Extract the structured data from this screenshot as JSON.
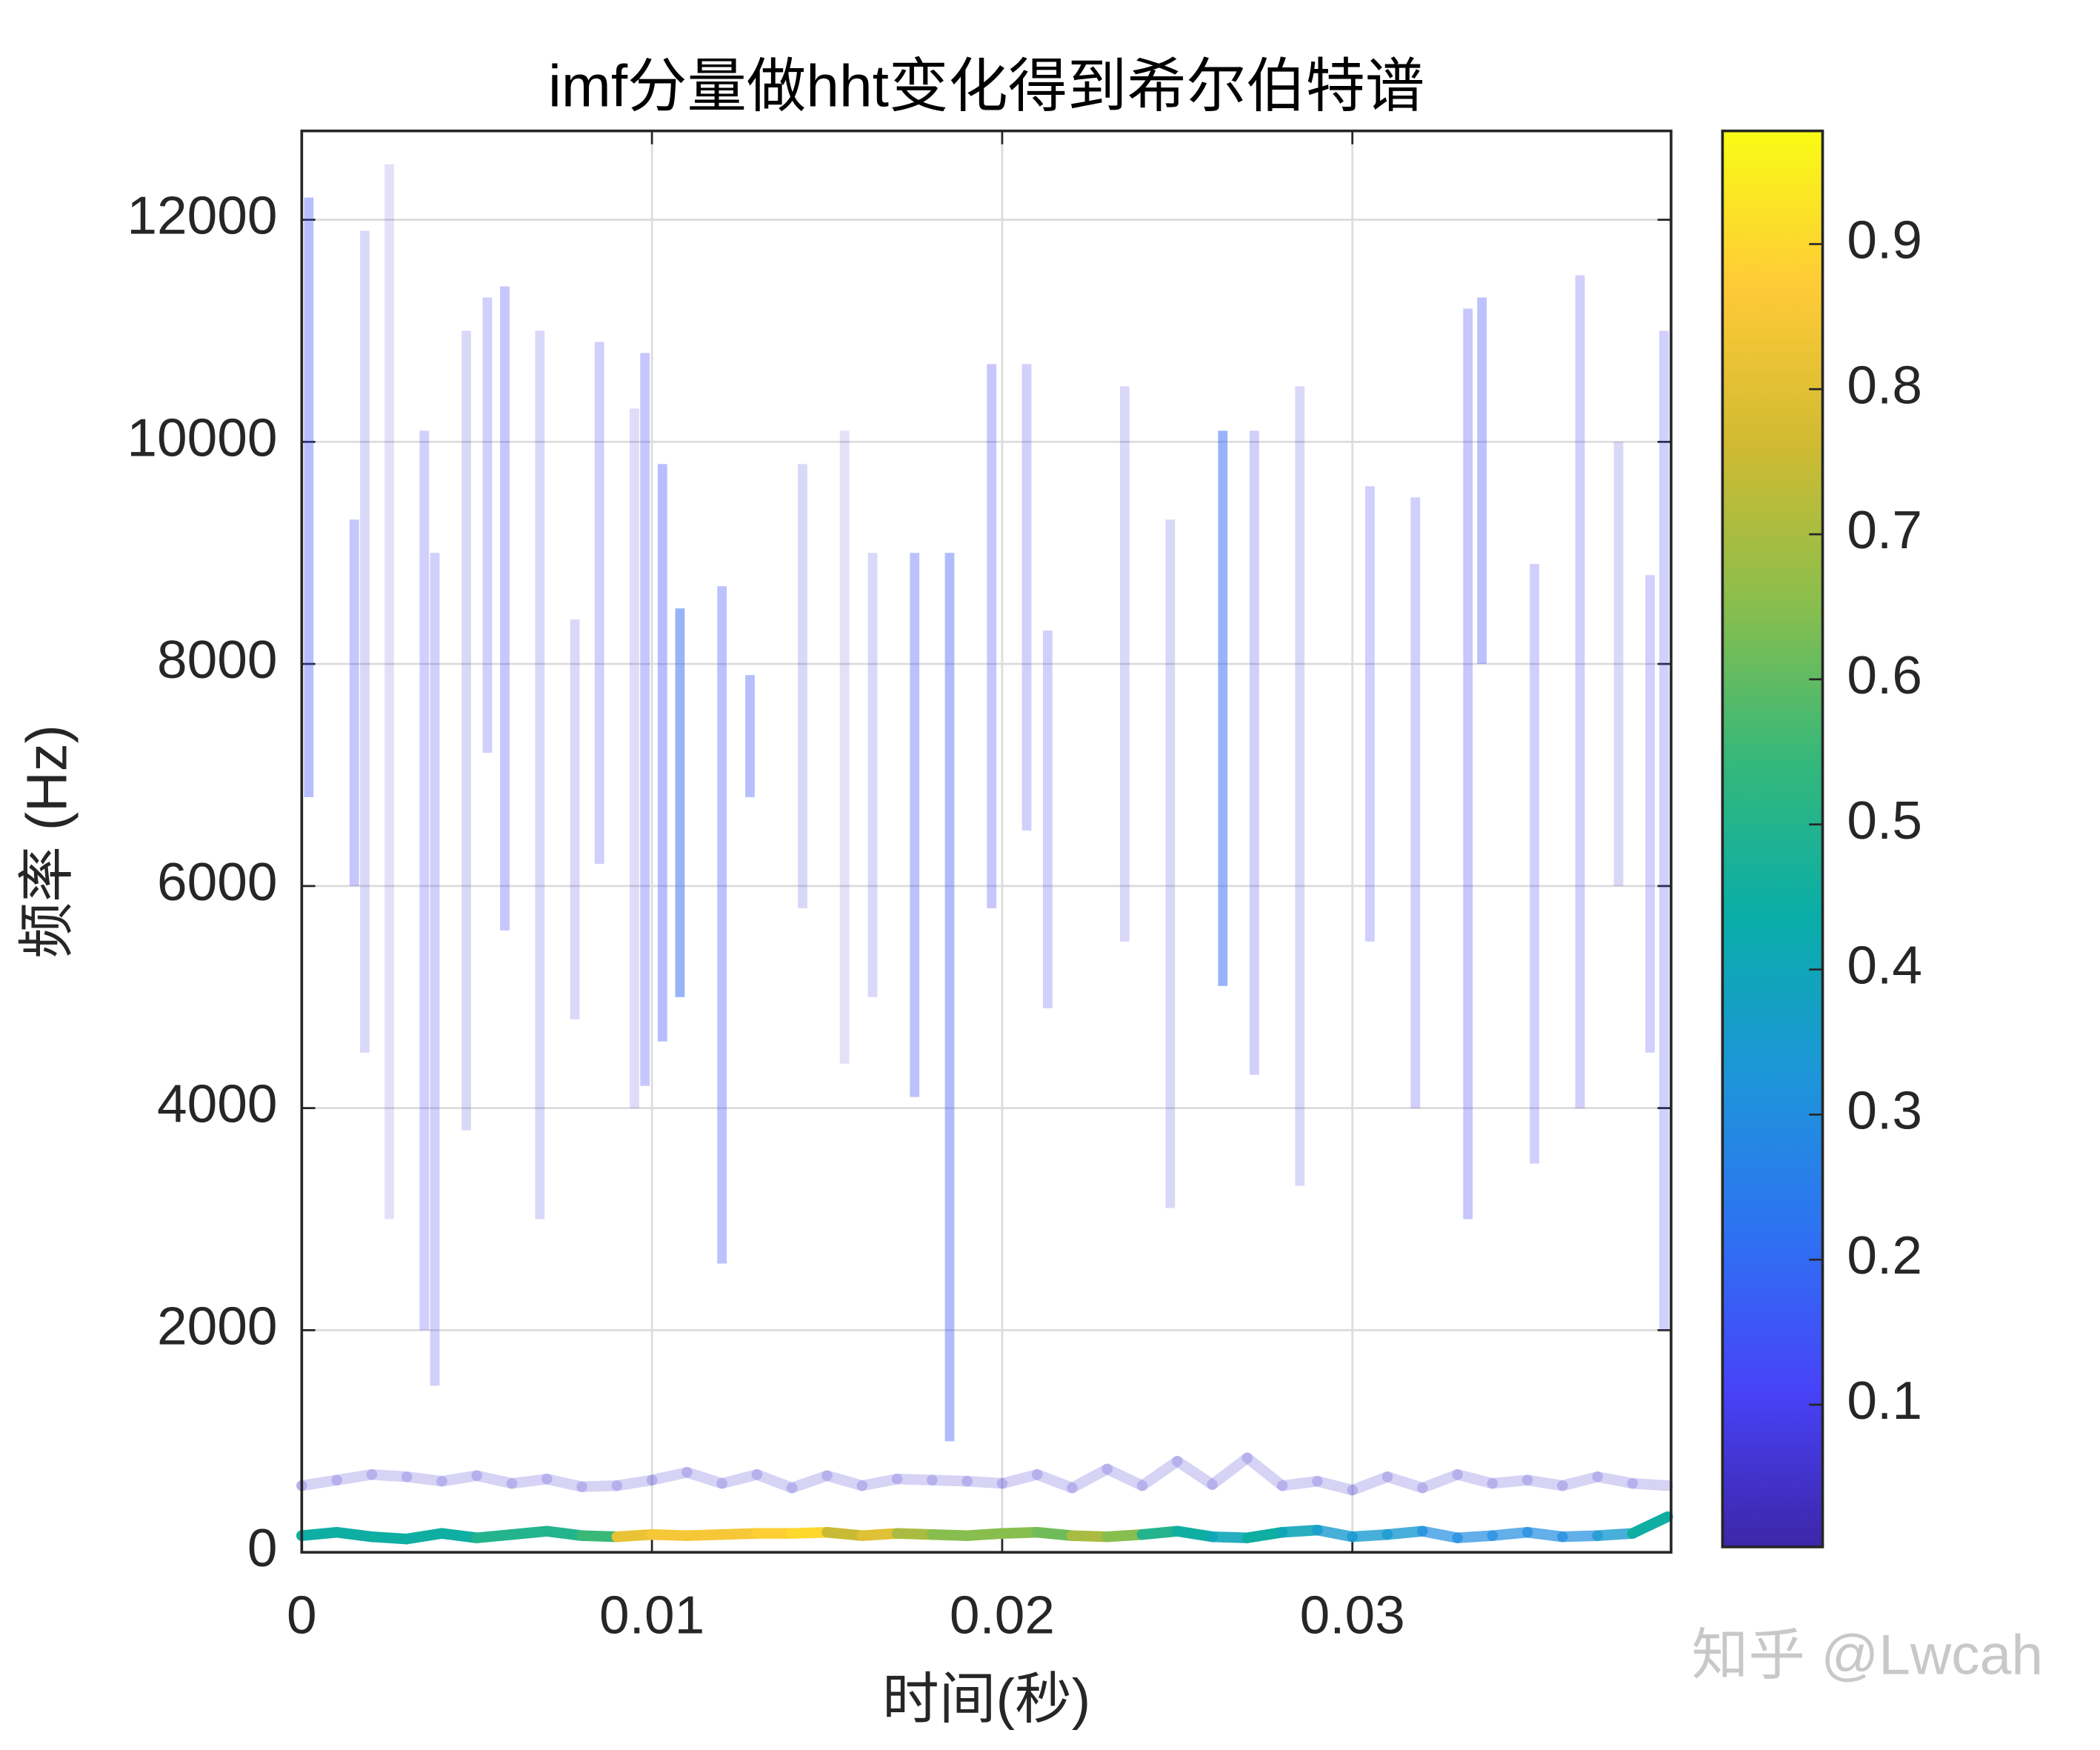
{
  "chart_data": {
    "type": "hilbert-spectrum",
    "title": "imf分量做hht变化得到希尔伯特谱",
    "x_label": "时间(秒)",
    "y_label": "频率 (Hz)",
    "watermark": "知乎 @Lwcah",
    "xlim": [
      0,
      0.0391
    ],
    "xticks": [
      0,
      0.01,
      0.02,
      0.03
    ],
    "ylim": [
      0,
      12800
    ],
    "yticks": [
      0,
      2000,
      4000,
      6000,
      8000,
      10000,
      12000
    ],
    "grid": true,
    "clim": [
      0.002,
      0.978
    ],
    "cticks": [
      0.1,
      0.2,
      0.3,
      0.4,
      0.5,
      0.6,
      0.7,
      0.8,
      0.9
    ],
    "colormap": [
      "#3e26a8",
      "#4743f8",
      "#2e72f2",
      "#1d96d9",
      "#09ada8",
      "#35b87a",
      "#8abe4c",
      "#d0ba32",
      "#feca37",
      "#f9fb15"
    ],
    "x": [
      0,
      0.001,
      0.002,
      0.003,
      0.004,
      0.005,
      0.006,
      0.007,
      0.008,
      0.009,
      0.01,
      0.011,
      0.012,
      0.013,
      0.014,
      0.015,
      0.016,
      0.017,
      0.018,
      0.019,
      0.02,
      0.021,
      0.022,
      0.023,
      0.024,
      0.025,
      0.026,
      0.027,
      0.028,
      0.029,
      0.03,
      0.031,
      0.032,
      0.033,
      0.034,
      0.035,
      0.036,
      0.037,
      0.038,
      0.039
    ],
    "series": [
      {
        "values": [
          150,
          180,
          140,
          120,
          170,
          130,
          160,
          190,
          150,
          140,
          160,
          150,
          160,
          170,
          170,
          180,
          150,
          170,
          160,
          150,
          170,
          180,
          150,
          140,
          160,
          190,
          140,
          130,
          180,
          200,
          140,
          160,
          190,
          130,
          150,
          180,
          140,
          150,
          170,
          320
        ],
        "amplitude": [
          0.45,
          0.45,
          0.45,
          0.45,
          0.45,
          0.45,
          0.5,
          0.5,
          0.5,
          0.55,
          0.82,
          0.85,
          0.85,
          0.85,
          0.88,
          0.9,
          0.75,
          0.8,
          0.7,
          0.65,
          0.65,
          0.65,
          0.62,
          0.7,
          0.65,
          0.5,
          0.45,
          0.4,
          0.45,
          0.4,
          0.35,
          0.35,
          0.35,
          0.3,
          0.3,
          0.3,
          0.3,
          0.3,
          0.35,
          0.45
        ]
      },
      {
        "values": [
          600,
          650,
          700,
          680,
          640,
          690,
          620,
          660,
          590,
          600,
          650,
          720,
          620,
          700,
          580,
          690,
          600,
          660,
          650,
          640,
          620,
          700,
          580,
          750,
          600,
          820,
          610,
          850,
          600,
          640,
          560,
          680,
          580,
          700,
          620,
          650,
          600,
          680,
          620,
          600
        ],
        "amplitude": [
          0.06,
          0.06,
          0.06,
          0.06,
          0.06,
          0.06,
          0.06,
          0.06,
          0.06,
          0.06,
          0.06,
          0.06,
          0.06,
          0.06,
          0.06,
          0.06,
          0.06,
          0.06,
          0.06,
          0.06,
          0.06,
          0.06,
          0.06,
          0.06,
          0.06,
          0.06,
          0.06,
          0.06,
          0.06,
          0.06,
          0.06,
          0.06,
          0.06,
          0.06,
          0.06,
          0.06,
          0.06,
          0.06,
          0.06,
          0.06
        ]
      }
    ],
    "streaks": {
      "x": [
        0.0002,
        0.0015,
        0.0018,
        0.0025,
        0.0035,
        0.0038,
        0.0047,
        0.0053,
        0.0058,
        0.0068,
        0.0078,
        0.0085,
        0.0095,
        0.0098,
        0.0103,
        0.0108,
        0.012,
        0.0128,
        0.0143,
        0.0155,
        0.0163,
        0.0175,
        0.0185,
        0.0197,
        0.0207,
        0.0213,
        0.0235,
        0.0248,
        0.0263,
        0.0272,
        0.0285,
        0.0305,
        0.0318,
        0.0333,
        0.0337,
        0.0352,
        0.0365,
        0.0376,
        0.0385,
        0.0389
      ],
      "low": [
        6800,
        6000,
        4500,
        3000,
        2000,
        1500,
        3800,
        7200,
        5600,
        3000,
        4800,
        6200,
        4000,
        4200,
        4600,
        5000,
        2600,
        6800,
        5800,
        4400,
        5000,
        4100,
        1000,
        5800,
        6500,
        4900,
        5500,
        3100,
        5100,
        4300,
        3300,
        5500,
        4000,
        3000,
        8000,
        3500,
        4000,
        6000,
        4500,
        2000
      ],
      "high": [
        12200,
        9300,
        11900,
        12500,
        10100,
        9000,
        11000,
        11300,
        11400,
        11000,
        8400,
        10900,
        10300,
        10800,
        9800,
        8500,
        8700,
        7900,
        9800,
        10100,
        9000,
        9000,
        9000,
        10700,
        10700,
        8300,
        10500,
        9300,
        10100,
        10100,
        10500,
        9600,
        9500,
        11200,
        11300,
        8900,
        11500,
        10000,
        8800,
        11000
      ],
      "amplitude": [
        0.15,
        0.12,
        0.08,
        0.06,
        0.1,
        0.1,
        0.08,
        0.1,
        0.12,
        0.08,
        0.08,
        0.1,
        0.07,
        0.12,
        0.15,
        0.2,
        0.14,
        0.15,
        0.08,
        0.06,
        0.08,
        0.14,
        0.16,
        0.12,
        0.1,
        0.1,
        0.08,
        0.08,
        0.2,
        0.1,
        0.08,
        0.1,
        0.1,
        0.12,
        0.14,
        0.1,
        0.1,
        0.08,
        0.1,
        0.1
      ]
    }
  }
}
